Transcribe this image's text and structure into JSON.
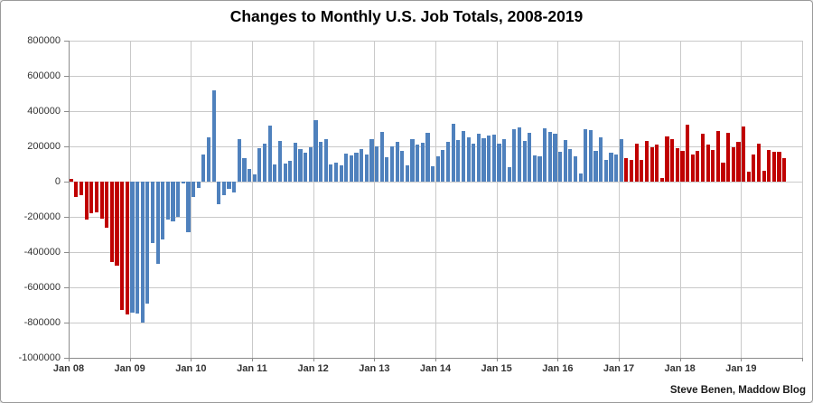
{
  "title": "Changes to Monthly U.S. Job Totals, 2008-2019",
  "attribution": "Steve Benen, Maddow Blog",
  "colors": {
    "republican_bar": "#C00000",
    "democrat_bar": "#4F81BD",
    "gridline": "#C9C9C9",
    "axis": "#8C8C8C",
    "background": "#FFFFFF"
  },
  "chart_data": {
    "type": "bar",
    "title": "Changes to Monthly U.S. Job Totals, 2008-2019",
    "xlabel": "",
    "ylabel": "",
    "unit": "jobs per month",
    "grid": true,
    "legend": "none",
    "ylim": [
      -1000000,
      800000
    ],
    "ytick_step": 200000,
    "ytick_labels": [
      "800000",
      "600000",
      "400000",
      "200000",
      "0",
      "-200000",
      "-400000",
      "-600000",
      "-800000",
      "-1000000"
    ],
    "xtick_labels": [
      "Jan 08",
      "Jan 09",
      "Jan 10",
      "Jan 11",
      "Jan 12",
      "Jan 13",
      "Jan 14",
      "Jan 15",
      "Jan 16",
      "Jan 17",
      "Jan 18",
      "Jan 19"
    ],
    "x_start_month": "2008-01",
    "x_end_month": "2019-09",
    "color_segments": [
      {
        "from": "2008-01",
        "to": "2008-12",
        "color": "#C00000"
      },
      {
        "from": "2009-01",
        "to": "2017-01",
        "color": "#4F81BD"
      },
      {
        "from": "2017-02",
        "to": "2019-09",
        "color": "#C00000"
      }
    ],
    "monthly_job_changes": {
      "2008": [
        15000,
        -85000,
        -75000,
        -215000,
        -180000,
        -175000,
        -210000,
        -260000,
        -455000,
        -475000,
        -730000,
        -755000
      ],
      "2009": [
        -745000,
        -750000,
        -800000,
        -690000,
        -350000,
        -465000,
        -330000,
        -215000,
        -225000,
        -200000,
        -10000,
        -285000
      ],
      "2010": [
        -85000,
        -35000,
        155000,
        250000,
        520000,
        -130000,
        -75000,
        -40000,
        -60000,
        240000,
        135000,
        70000
      ],
      "2011": [
        40000,
        190000,
        215000,
        320000,
        100000,
        230000,
        105000,
        120000,
        220000,
        185000,
        165000,
        195000
      ],
      "2012": [
        350000,
        225000,
        240000,
        95000,
        110000,
        90000,
        160000,
        150000,
        165000,
        185000,
        155000,
        240000
      ],
      "2013": [
        200000,
        280000,
        140000,
        200000,
        225000,
        175000,
        90000,
        240000,
        210000,
        220000,
        275000,
        85000
      ],
      "2014": [
        145000,
        180000,
        225000,
        330000,
        235000,
        285000,
        250000,
        215000,
        270000,
        245000,
        260000,
        265000
      ],
      "2015": [
        215000,
        240000,
        80000,
        295000,
        310000,
        230000,
        275000,
        150000,
        145000,
        305000,
        280000,
        270000
      ],
      "2016": [
        170000,
        235000,
        185000,
        145000,
        45000,
        295000,
        290000,
        175000,
        250000,
        125000,
        165000,
        155000
      ],
      "2017": [
        240000,
        135000,
        125000,
        215000,
        125000,
        230000,
        195000,
        210000,
        20000,
        255000,
        240000,
        190000
      ],
      "2018": [
        175000,
        325000,
        155000,
        175000,
        270000,
        210000,
        180000,
        285000,
        110000,
        275000,
        195000,
        225000
      ],
      "2019": [
        312000,
        55000,
        155000,
        215000,
        60000,
        180000,
        170000,
        170000,
        135000
      ]
    }
  }
}
